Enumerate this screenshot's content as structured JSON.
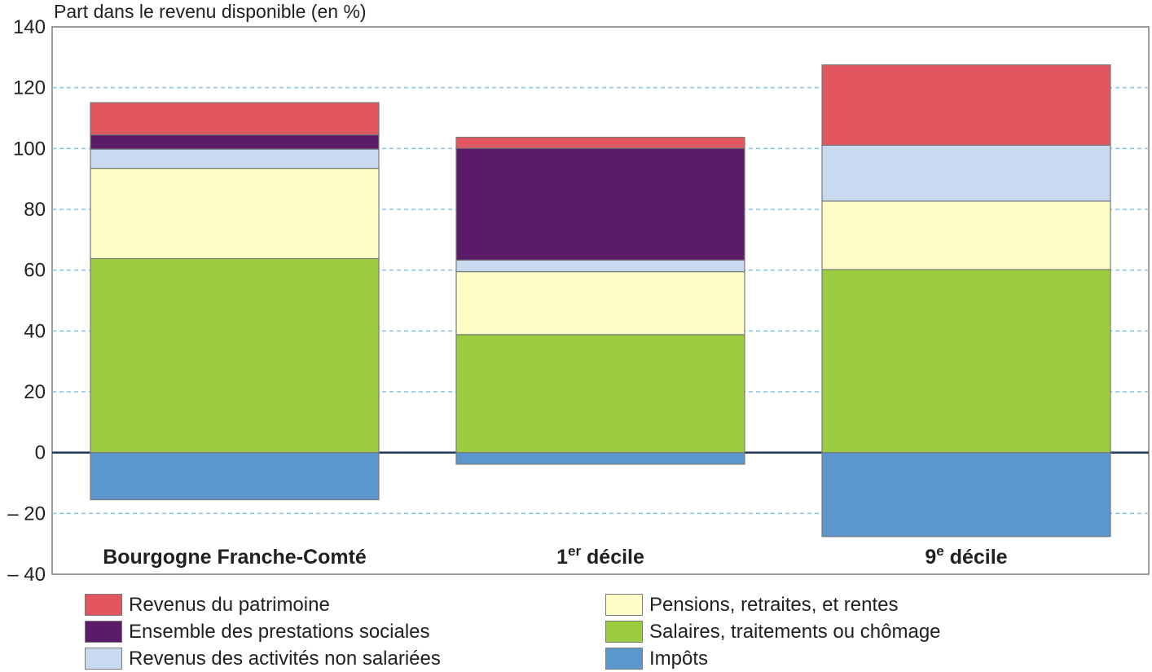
{
  "chart_data": {
    "type": "bar",
    "stacked": true,
    "ylabel": "Part dans le revenu disponible (en %)",
    "ylim": [
      -40,
      140
    ],
    "yticks": [
      -40,
      -20,
      0,
      20,
      40,
      60,
      80,
      100,
      120,
      140
    ],
    "ytick_labels": [
      "– 40",
      "– 20",
      "0",
      "20",
      "40",
      "60",
      "80",
      "100",
      "120",
      "140"
    ],
    "grid": true,
    "legend_position": "bottom",
    "categories": [
      {
        "main": "Bourgogne Franche-Comté",
        "sup": "",
        "rest": ""
      },
      {
        "main": "1",
        "sup": "er",
        "rest": " décile"
      },
      {
        "main": "9",
        "sup": "e",
        "rest": " décile"
      }
    ],
    "series": [
      {
        "name": "Salaires, traitements ou chômage",
        "color": "#9ccc40",
        "values": [
          63.8,
          38.8,
          60.2
        ]
      },
      {
        "name": "Pensions, retraites, et rentes",
        "color": "#fffcc6",
        "values": [
          29.7,
          20.7,
          22.5
        ]
      },
      {
        "name": "Revenus des activités non salariées",
        "color": "#c9daf0",
        "values": [
          6.3,
          3.8,
          18.4
        ]
      },
      {
        "name": "Ensemble des prestations sociales",
        "color": "#5c1b68",
        "values": [
          4.7,
          36.8,
          0
        ]
      },
      {
        "name": "Revenus du patrimoine",
        "color": "#e2565f",
        "values": [
          10.6,
          3.6,
          26.4
        ]
      },
      {
        "name": "Impôts",
        "color": "#5b96cc",
        "values": [
          -15.5,
          -3.8,
          -27.6
        ]
      }
    ]
  },
  "legend": {
    "left": [
      {
        "label": "Revenus du patrimoine",
        "color": "#e2565f"
      },
      {
        "label": "Ensemble des prestations sociales",
        "color": "#5c1b68"
      },
      {
        "label": "Revenus des activités non salariées",
        "color": "#c9daf0"
      }
    ],
    "right": [
      {
        "label": "Pensions, retraites, et rentes",
        "color": "#fffcc6"
      },
      {
        "label": "Salaires, traitements ou chômage",
        "color": "#9ccc40"
      },
      {
        "label": "Impôts",
        "color": "#5b96cc"
      }
    ]
  }
}
